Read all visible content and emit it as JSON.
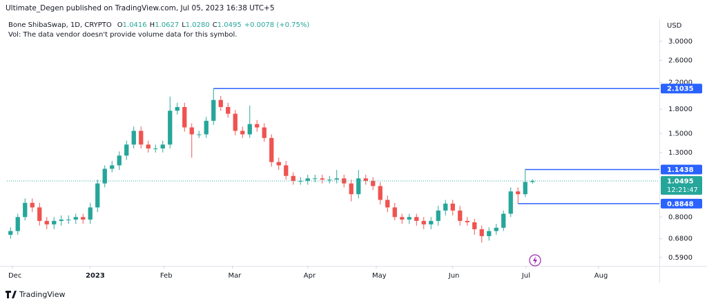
{
  "header": "Ultimate_Degen published on TradingView.com, Jul 05, 2023 16:38 UTC+5",
  "footer": "TradingView",
  "currency": "USD",
  "countdown": "12:21:47",
  "legend": {
    "symbol": "Bone ShibaSwap, 1D, CRYPTO",
    "keys": [
      "O",
      "H",
      "L",
      "C"
    ],
    "values": [
      "1.0416",
      "1.0627",
      "1.0280",
      "1.0495"
    ],
    "change": "+0.0078 (+0.75%)",
    "volume_note": "Vol: The data vendor doesn't provide volume data for this symbol."
  },
  "chart_data": {
    "type": "candlestick",
    "log": true,
    "up_color": "#26a69a",
    "down_color": "#ef5350",
    "ylim": [
      0.554,
      3.54
    ],
    "yticks": [
      {
        "value": 3,
        "label": "3.0000"
      },
      {
        "value": 2.6,
        "label": "2.6000"
      },
      {
        "value": 2.2,
        "label": "2.2000"
      },
      {
        "value": 1.8,
        "label": "1.8000"
      },
      {
        "value": 1.5,
        "label": "1.5000"
      },
      {
        "value": 1.3,
        "label": "1.3000"
      },
      {
        "value": 0.8,
        "label": "0.8000"
      },
      {
        "value": 0.68,
        "label": "0.6800"
      },
      {
        "value": 0.59,
        "label": "0.5900"
      }
    ],
    "xlim": [
      -0.5,
      89.5
    ],
    "xticks": [
      {
        "value": 0.26,
        "label": "Dec"
      },
      {
        "value": 10.93,
        "label": "2023"
      },
      {
        "value": 21.2,
        "label": "Feb"
      },
      {
        "value": 30.6,
        "label": "Mar"
      },
      {
        "value": 41.0,
        "label": "Apr"
      },
      {
        "value": 50.45,
        "label": "May"
      },
      {
        "value": 61.0,
        "label": "Jun"
      },
      {
        "value": 71.1,
        "label": "Jul"
      },
      {
        "value": 81.1,
        "label": "Aug"
      }
    ],
    "open": [
      0.7,
      0.72,
      0.8,
      0.89,
      0.86,
      0.777,
      0.757,
      0.777,
      0.785,
      0.785,
      0.8,
      0.785,
      0.86,
      1.03,
      1.15,
      1.18,
      1.27,
      1.38,
      1.53,
      1.38,
      1.34,
      1.34,
      1.38,
      1.78,
      1.83,
      1.57,
      1.49,
      1.49,
      1.65,
      1.93,
      1.83,
      1.74,
      1.53,
      1.49,
      1.61,
      1.57,
      1.45,
      1.21,
      1.18,
      1.09,
      1.05,
      1.05,
      1.07,
      1.07,
      1.06,
      1.06,
      1.07,
      1.03,
      0.95,
      1.07,
      1.05,
      1.01,
      0.91,
      0.86,
      0.8,
      0.785,
      0.8,
      0.777,
      0.757,
      0.777,
      0.84,
      0.885,
      0.84,
      0.777,
      0.769,
      0.73,
      0.693,
      0.72,
      0.738,
      0.82,
      0.97,
      0.95,
      1.0416
    ],
    "high": [
      0.74,
      0.82,
      0.92,
      0.92,
      0.89,
      0.8,
      0.8,
      0.81,
      0.81,
      0.82,
      0.82,
      0.89,
      1.06,
      1.18,
      1.22,
      1.31,
      1.42,
      1.58,
      1.58,
      1.42,
      1.38,
      1.42,
      1.98,
      1.89,
      1.89,
      1.62,
      1.53,
      1.7,
      2.1,
      1.99,
      1.89,
      1.79,
      1.58,
      1.85,
      1.66,
      1.62,
      1.49,
      1.25,
      1.22,
      1.12,
      1.08,
      1.1,
      1.1,
      1.1,
      1.09,
      1.14,
      1.1,
      1.06,
      1.14,
      1.1,
      1.08,
      1.04,
      0.94,
      0.89,
      0.82,
      0.82,
      0.82,
      0.8,
      0.8,
      0.87,
      0.91,
      0.91,
      0.87,
      0.8,
      0.79,
      0.75,
      0.74,
      0.76,
      0.84,
      1.0,
      1.0,
      1.1438,
      1.0627
    ],
    "low": [
      0.68,
      0.7,
      0.78,
      0.83,
      0.75,
      0.73,
      0.73,
      0.75,
      0.76,
      0.76,
      0.76,
      0.76,
      0.83,
      1.0,
      1.12,
      1.14,
      1.23,
      1.34,
      1.34,
      1.3,
      1.3,
      1.3,
      1.34,
      1.73,
      1.52,
      1.25,
      1.45,
      1.45,
      1.6,
      1.78,
      1.69,
      1.48,
      1.45,
      1.45,
      1.52,
      1.41,
      1.17,
      1.14,
      1.06,
      1.02,
      1.02,
      1.02,
      1.04,
      1.03,
      1.03,
      1.03,
      1.0,
      0.9,
      0.92,
      1.02,
      0.98,
      0.88,
      0.83,
      0.78,
      0.76,
      0.76,
      0.75,
      0.73,
      0.73,
      0.75,
      0.81,
      0.81,
      0.75,
      0.75,
      0.7,
      0.66,
      0.67,
      0.7,
      0.72,
      0.8,
      0.8848,
      0.93,
      1.028
    ],
    "close": [
      0.72,
      0.8,
      0.89,
      0.86,
      0.777,
      0.757,
      0.777,
      0.785,
      0.785,
      0.8,
      0.785,
      0.86,
      1.03,
      1.15,
      1.18,
      1.27,
      1.38,
      1.53,
      1.38,
      1.34,
      1.34,
      1.38,
      1.78,
      1.83,
      1.57,
      1.49,
      1.49,
      1.65,
      1.93,
      1.83,
      1.74,
      1.53,
      1.49,
      1.61,
      1.57,
      1.45,
      1.21,
      1.18,
      1.09,
      1.05,
      1.05,
      1.07,
      1.07,
      1.06,
      1.06,
      1.07,
      1.03,
      0.95,
      1.07,
      1.05,
      1.01,
      0.91,
      0.86,
      0.8,
      0.785,
      0.8,
      0.777,
      0.757,
      0.777,
      0.84,
      0.885,
      0.84,
      0.777,
      0.769,
      0.73,
      0.693,
      0.72,
      0.738,
      0.82,
      0.97,
      0.95,
      1.0416,
      1.0495
    ],
    "levels": [
      2.1035,
      1.1438,
      0.8848
    ],
    "level_color": "#2962ff"
  }
}
